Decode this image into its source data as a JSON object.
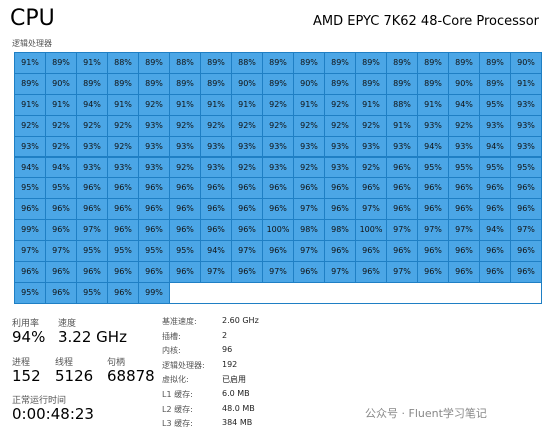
{
  "header": {
    "title": "CPU",
    "processor": "AMD EPYC 7K62 48-Core Processor",
    "grid_label": "逻辑处理器"
  },
  "grid": [
    [
      "91%",
      "89%",
      "91%",
      "88%",
      "89%",
      "88%",
      "89%",
      "88%",
      "89%",
      "89%",
      "89%",
      "89%",
      "89%",
      "89%",
      "89%",
      "89%",
      "90%"
    ],
    [
      "89%",
      "90%",
      "89%",
      "89%",
      "89%",
      "89%",
      "89%",
      "90%",
      "89%",
      "90%",
      "89%",
      "89%",
      "89%",
      "89%",
      "90%",
      "89%",
      "91%"
    ],
    [
      "91%",
      "91%",
      "94%",
      "91%",
      "92%",
      "91%",
      "91%",
      "91%",
      "92%",
      "91%",
      "92%",
      "91%",
      "88%",
      "91%",
      "94%",
      "95%",
      "93%"
    ],
    [
      "92%",
      "92%",
      "92%",
      "92%",
      "93%",
      "92%",
      "92%",
      "92%",
      "92%",
      "92%",
      "92%",
      "92%",
      "91%",
      "93%",
      "92%",
      "93%",
      "93%"
    ],
    [
      "93%",
      "92%",
      "93%",
      "92%",
      "93%",
      "93%",
      "93%",
      "93%",
      "93%",
      "93%",
      "93%",
      "93%",
      "93%",
      "94%",
      "93%",
      "94%",
      "93%"
    ],
    [
      "94%",
      "94%",
      "93%",
      "93%",
      "93%",
      "92%",
      "93%",
      "92%",
      "93%",
      "92%",
      "93%",
      "92%",
      "96%",
      "95%",
      "95%",
      "95%",
      "95%"
    ],
    [
      "95%",
      "95%",
      "96%",
      "96%",
      "96%",
      "96%",
      "96%",
      "96%",
      "96%",
      "96%",
      "96%",
      "96%",
      "96%",
      "96%",
      "96%",
      "96%",
      "96%"
    ],
    [
      "96%",
      "96%",
      "96%",
      "96%",
      "96%",
      "96%",
      "96%",
      "96%",
      "96%",
      "97%",
      "96%",
      "97%",
      "96%",
      "96%",
      "96%",
      "96%",
      "96%"
    ],
    [
      "99%",
      "96%",
      "97%",
      "96%",
      "96%",
      "96%",
      "96%",
      "96%",
      "100%",
      "98%",
      "98%",
      "100%",
      "97%",
      "97%",
      "97%",
      "94%",
      "97%"
    ],
    [
      "97%",
      "97%",
      "95%",
      "95%",
      "95%",
      "95%",
      "94%",
      "97%",
      "96%",
      "97%",
      "96%",
      "96%",
      "96%",
      "96%",
      "96%",
      "96%",
      "96%"
    ],
    [
      "96%",
      "96%",
      "96%",
      "96%",
      "96%",
      "96%",
      "97%",
      "96%",
      "97%",
      "96%",
      "97%",
      "96%",
      "97%",
      "96%",
      "96%",
      "96%",
      "96%"
    ],
    [
      "95%",
      "96%",
      "95%",
      "96%",
      "99%"
    ]
  ],
  "stats": [
    {
      "label": "利用率",
      "value": "94%"
    },
    {
      "label": "速度",
      "value": "3.22 GHz"
    },
    {
      "label": "进程",
      "value": "152"
    },
    {
      "label": "线程",
      "value": "5126"
    },
    {
      "label": "句柄",
      "value": "68878"
    },
    {
      "label": "正常运行时间",
      "value": "0:00:48:23"
    }
  ],
  "details": [
    {
      "label": "基准速度:",
      "value": "2.60 GHz"
    },
    {
      "label": "插槽:",
      "value": "2"
    },
    {
      "label": "内核:",
      "value": "96"
    },
    {
      "label": "逻辑处理器:",
      "value": "192"
    },
    {
      "label": "虚拟化:",
      "value": "已启用"
    },
    {
      "label": "L1 缓存:",
      "value": "6.0 MB"
    },
    {
      "label": "L2 缓存:",
      "value": "48.0 MB"
    },
    {
      "label": "L3 缓存:",
      "value": "384 MB"
    }
  ],
  "watermark": "公众号 · Fluent学习笔记"
}
